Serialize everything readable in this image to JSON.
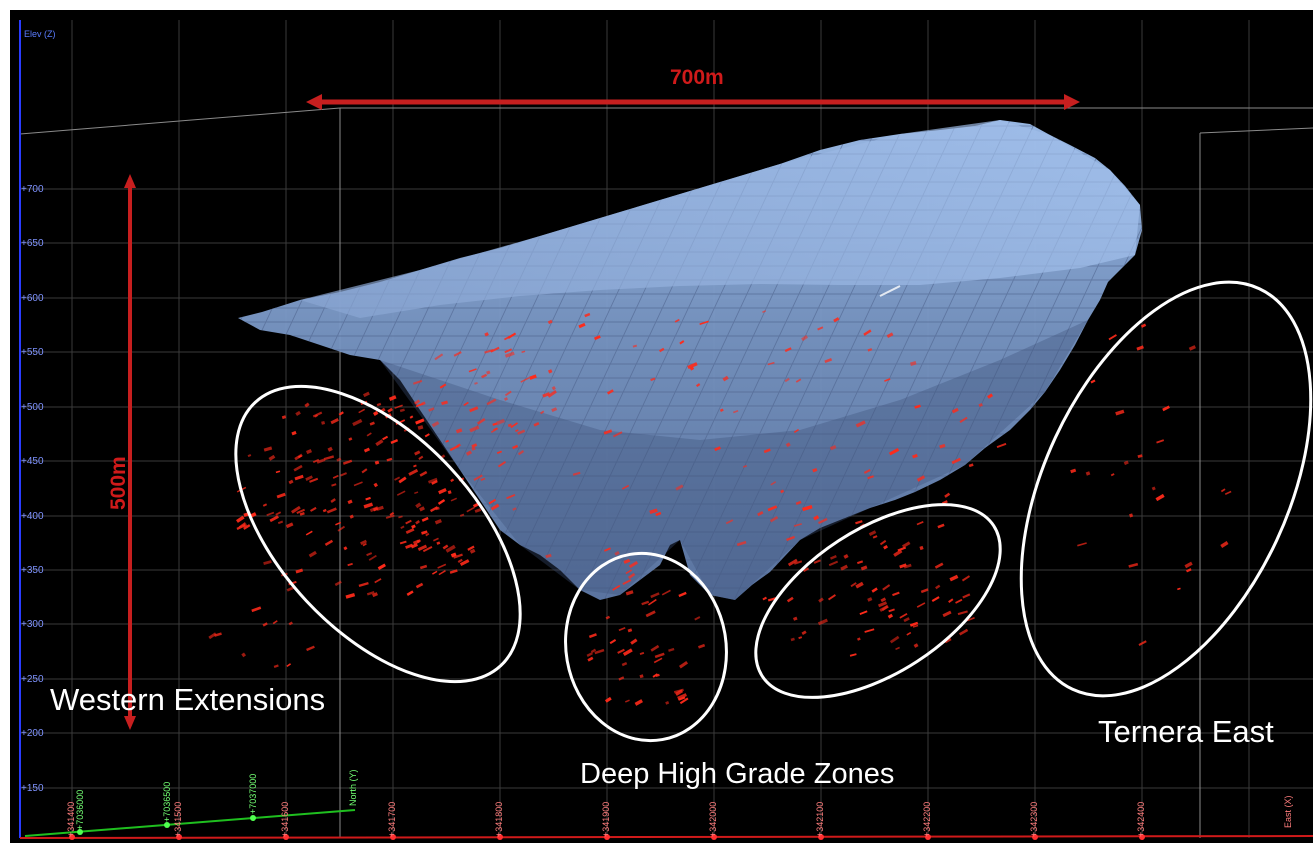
{
  "viewer": {
    "elev_axis_title": "Elev (Z)",
    "elev_ticks": [
      "+700",
      "+650",
      "+600",
      "+550",
      "+500",
      "+450",
      "+400",
      "+350",
      "+300",
      "+250",
      "+200",
      "+150"
    ],
    "east_ticks": [
      "+341400",
      "+341500",
      "+341600",
      "+341700",
      "+341800",
      "+341900",
      "+342000",
      "+342100",
      "+342200",
      "+342300",
      "+342400"
    ],
    "north_ticks": [
      "+7036000",
      "+7036500",
      "+7037000"
    ],
    "east_axis_name": "East (X)",
    "north_axis_name": "North (Y)"
  },
  "annotations": {
    "horizontal_scale": "700m",
    "vertical_scale": "500m",
    "zones": [
      {
        "label": "Western Extensions"
      },
      {
        "label": "Deep High Grade Zones"
      },
      {
        "label": "Ternera East"
      }
    ]
  },
  "colors": {
    "background": "#000000",
    "elev_axis": "#2a3cff",
    "east_axis": "#d01a1a",
    "north_axis": "#1fbf1f",
    "orebody": "#7b9ccc",
    "drill_intercepts": "#ff2a1a",
    "annotation_arrows": "#c71f1f",
    "zone_outline": "#ffffff"
  },
  "icons": {
    "horizontal_arrow": "double-arrow-horizontal-icon",
    "vertical_arrow": "double-arrow-vertical-icon"
  }
}
